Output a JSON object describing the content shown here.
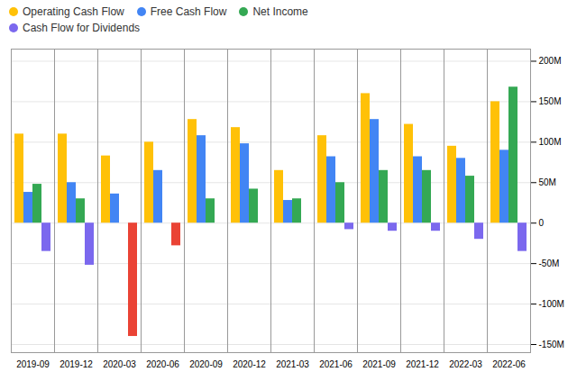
{
  "chart_data": {
    "type": "bar",
    "categories": [
      "2019-09",
      "2019-12",
      "2020-03",
      "2020-06",
      "2020-09",
      "2020-12",
      "2021-03",
      "2021-06",
      "2021-09",
      "2021-12",
      "2022-03",
      "2022-06"
    ],
    "series": [
      {
        "name": "Operating Cash Flow",
        "color": "#FFC107",
        "values": [
          110,
          110,
          83,
          100,
          128,
          118,
          65,
          108,
          160,
          122,
          95,
          150
        ]
      },
      {
        "name": "Free Cash Flow",
        "color": "#4285F4",
        "values": [
          38,
          50,
          36,
          65,
          108,
          98,
          28,
          82,
          128,
          82,
          80,
          90
        ]
      },
      {
        "name": "Net Income",
        "color": "#34A853",
        "values": [
          48,
          30,
          0,
          0,
          30,
          42,
          30,
          50,
          65,
          65,
          58,
          168
        ]
      },
      {
        "name": "Cash Flow for Dividends",
        "color": "#7B68EE",
        "colors": [
          "#7B68EE",
          "#7B68EE",
          "#EA4335",
          "#EA4335",
          "#7B68EE",
          "#7B68EE",
          "#7B68EE",
          "#7B68EE",
          "#7B68EE",
          "#7B68EE",
          "#7B68EE",
          "#7B68EE"
        ],
        "values": [
          -35,
          -52,
          -140,
          -28,
          0,
          0,
          0,
          -8,
          -10,
          -10,
          -20,
          -35
        ]
      }
    ],
    "ylim": [
      -160,
      215
    ],
    "yticks": [
      {
        "value": -150,
        "label": "-150M"
      },
      {
        "value": -100,
        "label": "-100M"
      },
      {
        "value": -50,
        "label": "-50M"
      },
      0,
      {
        "value": 50,
        "label": "50M"
      },
      {
        "value": 100,
        "label": "100M"
      },
      {
        "value": 150,
        "label": "150M"
      },
      {
        "value": 200,
        "label": "200M"
      }
    ],
    "grid": true,
    "legend": "top left"
  }
}
